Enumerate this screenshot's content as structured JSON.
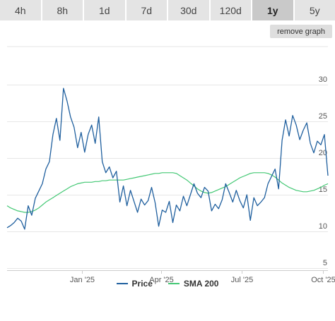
{
  "timeframes": [
    {
      "label": "4h",
      "active": false
    },
    {
      "label": "8h",
      "active": false
    },
    {
      "label": "1d",
      "active": false
    },
    {
      "label": "7d",
      "active": false
    },
    {
      "label": "30d",
      "active": false
    },
    {
      "label": "120d",
      "active": false
    },
    {
      "label": "1y",
      "active": true
    },
    {
      "label": "5y",
      "active": false
    }
  ],
  "remove_graph_label": "remove graph",
  "colors": {
    "price": "#1f5f9e",
    "sma": "#43c874",
    "grid": "#e6e6e6",
    "axis_text": "#555555"
  },
  "chart_data": {
    "type": "line",
    "x": [
      "2024-10-08",
      "2024-10-12",
      "2024-10-16",
      "2024-10-20",
      "2024-10-24",
      "2024-10-28",
      "2024-11-01",
      "2024-11-05",
      "2024-11-09",
      "2024-11-13",
      "2024-11-17",
      "2024-11-21",
      "2024-11-25",
      "2024-11-29",
      "2024-12-03",
      "2024-12-07",
      "2024-12-11",
      "2024-12-15",
      "2024-12-19",
      "2024-12-23",
      "2024-12-27",
      "2024-12-31",
      "2025-01-04",
      "2025-01-08",
      "2025-01-12",
      "2025-01-16",
      "2025-01-20",
      "2025-01-24",
      "2025-01-28",
      "2025-02-01",
      "2025-02-05",
      "2025-02-09",
      "2025-02-13",
      "2025-02-17",
      "2025-02-21",
      "2025-02-25",
      "2025-03-01",
      "2025-03-05",
      "2025-03-09",
      "2025-03-13",
      "2025-03-17",
      "2025-03-21",
      "2025-03-25",
      "2025-03-29",
      "2025-04-02",
      "2025-04-06",
      "2025-04-10",
      "2025-04-14",
      "2025-04-18",
      "2025-04-22",
      "2025-04-26",
      "2025-04-30",
      "2025-05-04",
      "2025-05-08",
      "2025-05-12",
      "2025-05-16",
      "2025-05-20",
      "2025-05-24",
      "2025-05-28",
      "2025-06-01",
      "2025-06-05",
      "2025-06-09",
      "2025-06-13",
      "2025-06-17",
      "2025-06-21",
      "2025-06-25",
      "2025-06-29",
      "2025-07-03",
      "2025-07-07",
      "2025-07-11",
      "2025-07-15",
      "2025-07-19",
      "2025-07-23",
      "2025-07-27",
      "2025-07-31",
      "2025-08-04",
      "2025-08-08",
      "2025-08-12",
      "2025-08-16",
      "2025-08-20",
      "2025-08-24",
      "2025-08-28",
      "2025-09-01",
      "2025-09-05",
      "2025-09-09",
      "2025-09-13",
      "2025-09-17",
      "2025-09-21",
      "2025-09-25",
      "2025-09-29",
      "2025-10-03",
      "2025-10-07"
    ],
    "series": [
      {
        "name": "Price",
        "color": "#1f5f9e",
        "values": [
          10.5,
          10.8,
          11.2,
          11.8,
          11.4,
          10.3,
          13.5,
          12.2,
          14.5,
          15.5,
          16.5,
          18.5,
          19.5,
          23.2,
          25.4,
          22.4,
          29.5,
          27.8,
          25.6,
          24.2,
          21.4,
          23.5,
          20.8,
          23.2,
          24.5,
          22.0,
          25.6,
          19.5,
          18.0,
          18.8,
          17.3,
          18.2,
          14.0,
          16.2,
          13.5,
          15.6,
          14.1,
          12.6,
          14.4,
          13.6,
          14.2,
          16.0,
          13.9,
          10.7,
          12.9,
          12.6,
          14.1,
          11.2,
          13.6,
          12.8,
          14.8,
          13.5,
          15.0,
          16.5,
          15.2,
          14.6,
          16.0,
          15.5,
          12.8,
          13.7,
          13.1,
          14.3,
          16.5,
          15.3,
          14.0,
          15.6,
          14.2,
          13.2,
          15.0,
          11.5,
          14.6,
          13.5,
          14.0,
          14.6,
          16.5,
          17.5,
          18.5,
          15.8,
          22.4,
          25.2,
          23.0,
          25.8,
          24.5,
          22.5,
          23.8,
          24.8,
          22.0,
          20.7,
          22.3,
          21.8,
          23.2,
          17.6
        ]
      },
      {
        "name": "SMA 200",
        "color": "#43c874",
        "values": [
          13.5,
          13.2,
          13.0,
          12.8,
          12.7,
          12.6,
          12.6,
          12.7,
          12.9,
          13.2,
          13.6,
          14.0,
          14.3,
          14.6,
          14.9,
          15.2,
          15.5,
          15.8,
          16.1,
          16.3,
          16.5,
          16.6,
          16.7,
          16.7,
          16.7,
          16.8,
          16.8,
          16.9,
          16.9,
          17.0,
          17.0,
          17.0,
          17.0,
          17.0,
          17.1,
          17.2,
          17.3,
          17.4,
          17.5,
          17.6,
          17.7,
          17.8,
          17.9,
          17.9,
          18.0,
          18.0,
          18.0,
          18.0,
          17.9,
          17.6,
          17.3,
          17.0,
          16.6,
          16.2,
          15.8,
          15.5,
          15.3,
          15.2,
          15.3,
          15.5,
          15.7,
          15.9,
          16.1,
          16.4,
          16.7,
          17.0,
          17.3,
          17.5,
          17.7,
          17.9,
          18.0,
          18.0,
          18.0,
          18.0,
          17.9,
          17.7,
          17.4,
          17.0,
          16.6,
          16.3,
          16.0,
          15.8,
          15.6,
          15.5,
          15.4,
          15.4,
          15.5,
          15.6,
          15.8,
          16.0,
          16.3,
          16.5
        ]
      }
    ],
    "x_ticks": [
      {
        "date": "2025-01-01",
        "label": "Jan '25"
      },
      {
        "date": "2025-04-01",
        "label": "Apr '25"
      },
      {
        "date": "2025-07-01",
        "label": "Jul '25"
      },
      {
        "date": "2025-10-01",
        "label": "Oct '25"
      }
    ],
    "y_ticks": [
      5,
      10,
      15,
      20,
      25,
      30
    ],
    "ylim": [
      5,
      30
    ],
    "grid": "horizontal",
    "legend": "bottom-center"
  }
}
